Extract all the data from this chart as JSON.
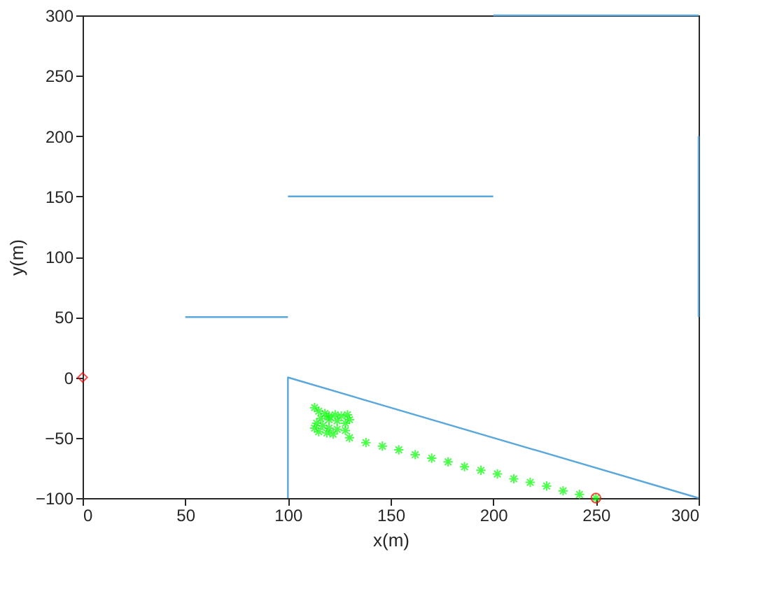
{
  "chart_data": {
    "type": "line",
    "xlabel": "x(m)",
    "ylabel": "y(m)",
    "xlim": [
      0,
      300
    ],
    "ylim": [
      -100,
      300
    ],
    "xticks": [
      0,
      50,
      100,
      150,
      200,
      250,
      300
    ],
    "yticks": [
      -100,
      -50,
      0,
      50,
      100,
      150,
      200,
      250,
      300
    ],
    "grid": false,
    "line_style": "solid",
    "series": [
      {
        "color": "#5aa7dc",
        "x": [
          50,
          100
        ],
        "values": [
          50,
          50
        ]
      },
      {
        "color": "#5aa7dc",
        "x": [
          100,
          200
        ],
        "values": [
          150,
          150
        ]
      },
      {
        "color": "#5aa7dc",
        "x": [
          200,
          300
        ],
        "values": [
          300,
          300
        ]
      },
      {
        "color": "#5aa7dc",
        "x": [
          300,
          300
        ],
        "values": [
          200,
          50
        ]
      },
      {
        "color": "#5aa7dc",
        "x": [
          100,
          100,
          300
        ],
        "values": [
          -100,
          0,
          -100
        ]
      },
      {
        "type": "scatter",
        "marker": "cross",
        "color": "#00ff00",
        "x": [
          113,
          115,
          118,
          120,
          123,
          126,
          129,
          130,
          128,
          124,
          120,
          116,
          114,
          117,
          120,
          124,
          128,
          115,
          119,
          113,
          122,
          130,
          138,
          146,
          154,
          162,
          170,
          178,
          186,
          194,
          202,
          210,
          218,
          226,
          234,
          242,
          250
        ],
        "values": [
          -25,
          -28,
          -30,
          -32,
          -31,
          -32,
          -31,
          -35,
          -38,
          -36,
          -35,
          -34,
          -38,
          -40,
          -42,
          -43,
          -44,
          -45,
          -46,
          -42,
          -47,
          -50,
          -54,
          -57,
          -60,
          -64,
          -67,
          -70,
          -74,
          -77,
          -80,
          -84,
          -87,
          -90,
          -94,
          -97,
          -100
        ]
      },
      {
        "type": "scatter",
        "marker": "circle",
        "color": "#ff0000",
        "x": [
          250
        ],
        "values": [
          -100
        ]
      },
      {
        "type": "scatter",
        "marker": "diamond",
        "color": "#ff0000",
        "x": [
          0
        ],
        "values": [
          0
        ]
      }
    ]
  }
}
